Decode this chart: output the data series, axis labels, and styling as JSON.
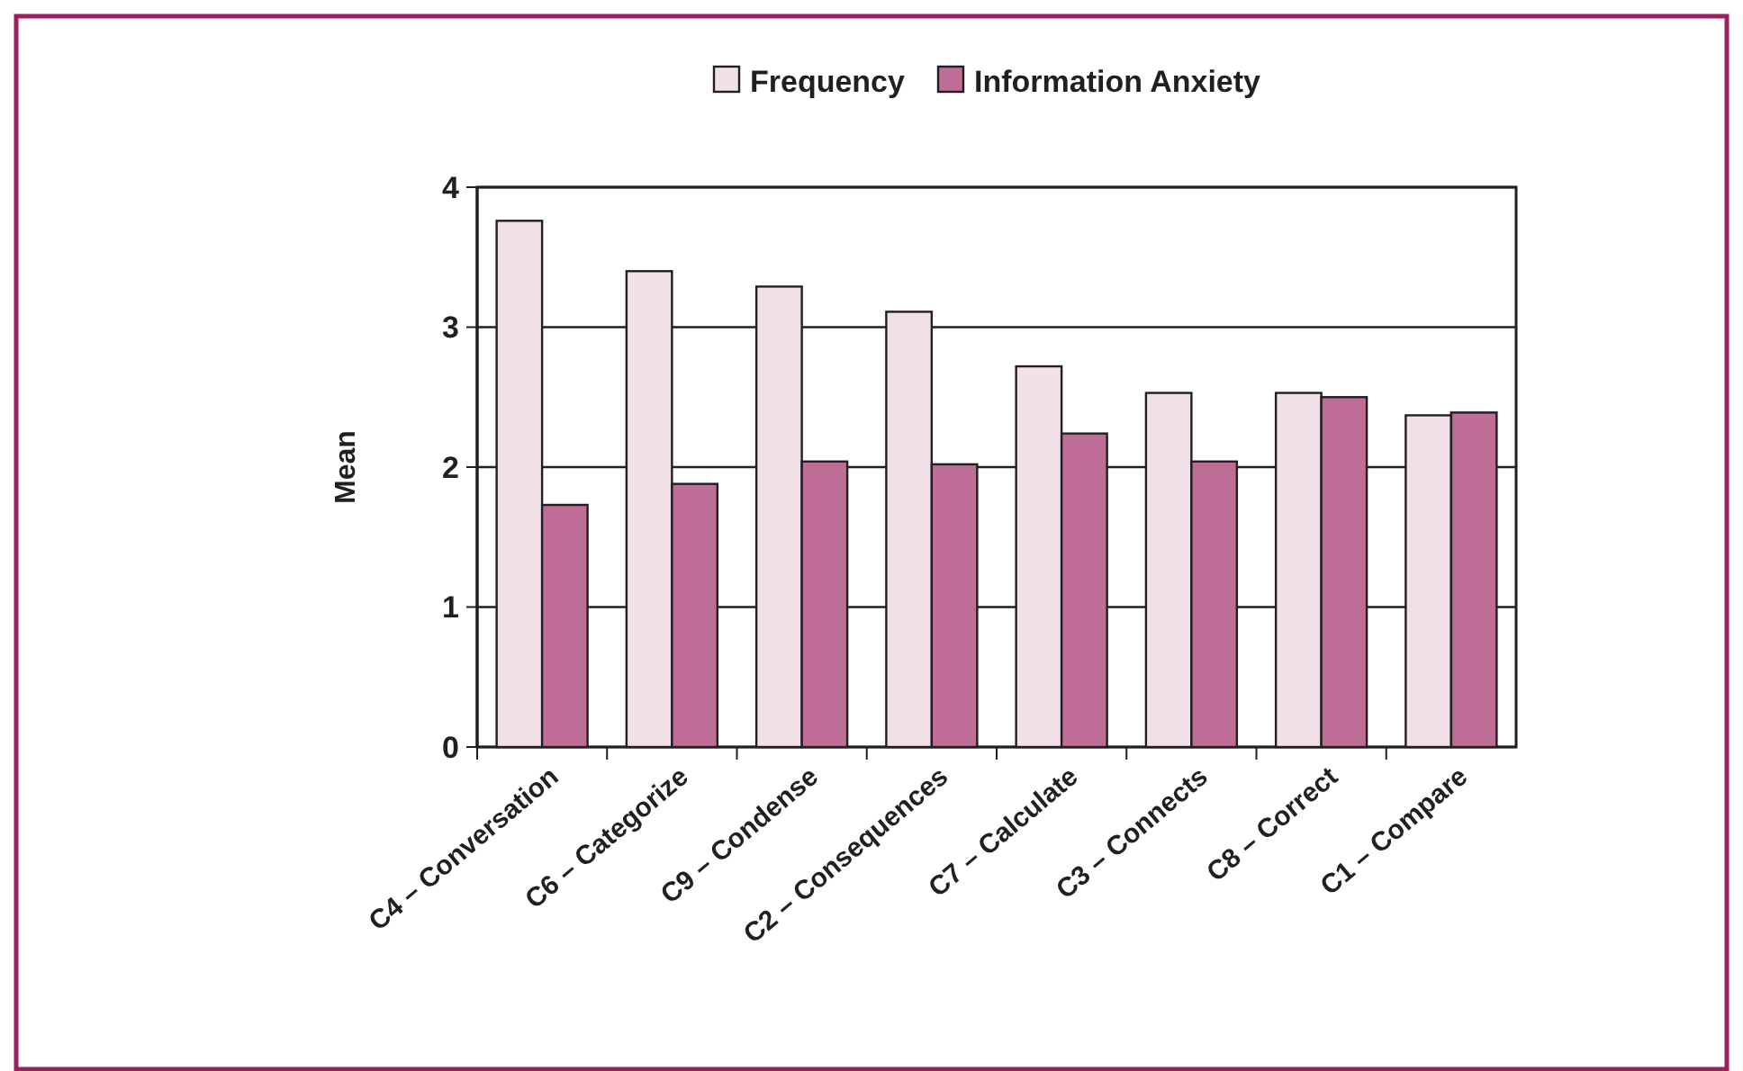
{
  "chart_data": {
    "type": "bar",
    "ylabel": "Mean",
    "categories": [
      "C4 – Conversation",
      "C6 – Categorize",
      "C9 – Condense",
      "C2 – Consequences",
      "C7 – Calculate",
      "C3 – Connects",
      "C8 – Correct",
      "C1 – Compare"
    ],
    "series": [
      {
        "name": "Frequency",
        "color": "#f2e0e8",
        "values": [
          3.76,
          3.4,
          3.29,
          3.11,
          2.72,
          2.53,
          2.53,
          2.37
        ]
      },
      {
        "name": "Information Anxiety",
        "color": "#be6e96",
        "values": [
          1.73,
          1.88,
          2.04,
          2.02,
          2.24,
          2.04,
          2.5,
          2.39
        ]
      }
    ],
    "ylim": [
      0,
      4
    ],
    "yticks": [
      0,
      1,
      2,
      3,
      4
    ],
    "grid": "y",
    "legend": "top"
  }
}
